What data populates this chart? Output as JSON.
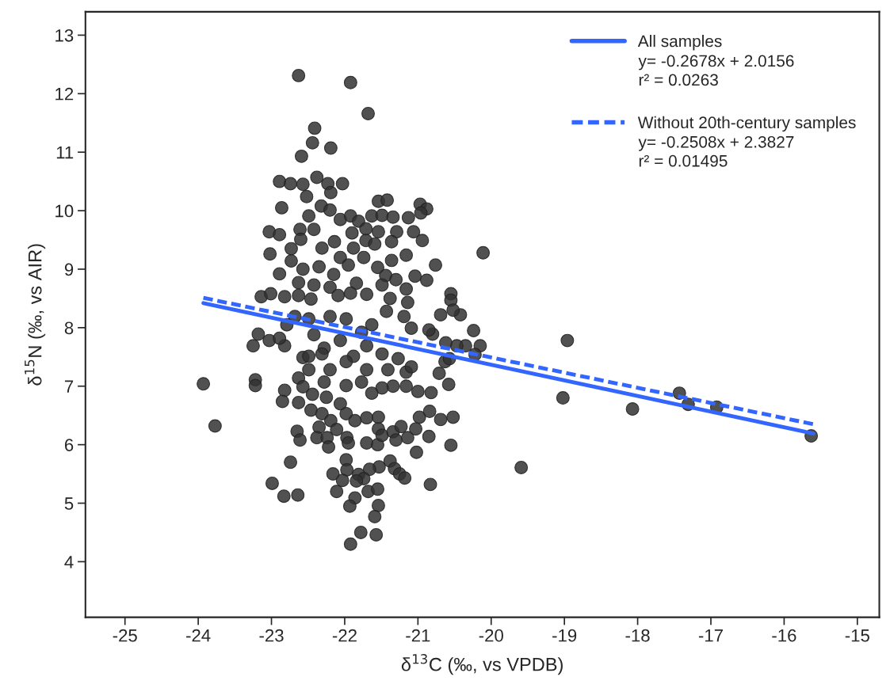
{
  "chart_data": {
    "type": "scatter",
    "xlabel": "δ$^{13}$C (‰, vs VPDB)",
    "ylabel": "δ$^{15}$N (‰, vs AIR)",
    "xlim": [
      -25.54,
      -14.7
    ],
    "ylim": [
      3.05,
      13.4
    ],
    "xticks": [
      -25,
      -24,
      -23,
      -22,
      -21,
      -20,
      -19,
      -18,
      -17,
      -16,
      -15
    ],
    "yticks": [
      4,
      5,
      6,
      7,
      8,
      9,
      10,
      11,
      12,
      13
    ],
    "grid": false,
    "legend": "top right",
    "annotations": [
      "y= -0.2678x + 2.0156\nr² = 0.0263",
      "y= -0.2508x + 2.3827\nr² = 0.01495"
    ],
    "series": [
      {
        "marker": "circle",
        "color": "#333333",
        "x": [
          -22.63,
          -21.92,
          -21.68,
          -22.41,
          -22.44,
          -22.19,
          -22.59,
          -22.89,
          -22.74,
          -22.57,
          -22.38,
          -22.23,
          -22.03,
          -22.19,
          -22.52,
          -22.86,
          -22.32,
          -21.54,
          -21.42,
          -20.97,
          -20.88,
          -20.96,
          -23.03,
          -22.89,
          -23.02,
          -22.89,
          -23.14,
          -20.11,
          -20.76,
          -21.13,
          -21.06,
          -20.94,
          -21.29,
          -21.36,
          -21.16,
          -21.36,
          -21.04,
          -20.88,
          -20.55,
          -20.55,
          -22.49,
          -22.2,
          -22.06,
          -21.92,
          -21.81,
          -21.63,
          -21.49,
          -21.34,
          -22.42,
          -22.61,
          -21.9,
          -21.71,
          -21.54,
          -21.71,
          -21.59,
          -22.6,
          -22.73,
          -22.31,
          -22.14,
          -21.88,
          -22.06,
          -21.74,
          -22.73,
          -22.57,
          -22.35,
          -22.15,
          -21.95,
          -21.55,
          -21.44,
          -22.63,
          -22.63,
          -22.42,
          -22.2,
          -21.84,
          -21.7,
          -21.49,
          -21.3,
          -21.16,
          -21.14,
          -23.01,
          -22.82,
          -22.46,
          -22.09,
          -21.92,
          -21.38,
          -23.93,
          -23.77,
          -23.25,
          -23.18,
          -23.03,
          -22.82,
          -22.89,
          -23.22,
          -23.22,
          -22.82,
          -22.85,
          -22.63,
          -22.65,
          -22.61,
          -22.74,
          -22.99,
          -22.83,
          -22.64,
          -22.57,
          -22.49,
          -22.63,
          -22.57,
          -22.44,
          -22.46,
          -22.25,
          -22.31,
          -22.19,
          -22.06,
          -21.98,
          -21.86,
          -21.7,
          -21.54,
          -22.35,
          -22.38,
          -22.24,
          -22.11,
          -22.22,
          -21.97,
          -21.95,
          -21.7,
          -21.55,
          -21.54,
          -21.49,
          -21.34,
          -21.23,
          -21.3,
          -21.14,
          -21.03,
          -20.98,
          -20.85,
          -20.84,
          -20.69,
          -20.52,
          -20.55,
          -21.02,
          -20.83,
          -21.38,
          -21.32,
          -21.25,
          -21.18,
          -21.53,
          -21.66,
          -21.98,
          -21.97,
          -22.16,
          -22.03,
          -21.81,
          -21.74,
          -21.84,
          -22.11,
          -21.68,
          -21.55,
          -21.86,
          -21.93,
          -21.54,
          -21.59,
          -21.78,
          -21.57,
          -21.92,
          -22.42,
          -22.28,
          -22.06,
          -21.88,
          -21.7,
          -21.49,
          -21.27,
          -21.16,
          -21.09,
          -21.34,
          -21.16,
          -21.0,
          -20.82,
          -21.49,
          -21.63,
          -20.71,
          -20.58,
          -20.63,
          -20.8,
          -20.85,
          -20.69,
          -20.42,
          -20.52,
          -20.24,
          -20.15,
          -20.35,
          -20.47,
          -20.62,
          -20.22,
          -20.57,
          -21.09,
          -21.19,
          -21.43,
          -21.63,
          -21.77,
          -21.98,
          -22.2,
          -22.49,
          -22.68,
          -22.79,
          -22.31,
          -21.98,
          -21.7,
          -21.41,
          -22.2,
          -22.49,
          -21.98,
          -21.77,
          -22.28,
          -19.59,
          -18.96,
          -19.02,
          -18.07,
          -17.43,
          -17.31,
          -16.92,
          -15.63
        ],
        "values": [
          12.31,
          12.19,
          11.66,
          11.41,
          11.16,
          11.07,
          10.93,
          10.5,
          10.46,
          10.45,
          10.57,
          10.46,
          10.46,
          10.31,
          10.24,
          10.05,
          10.08,
          10.16,
          10.18,
          10.11,
          10.03,
          9.96,
          9.64,
          9.59,
          9.26,
          8.92,
          8.53,
          9.28,
          9.07,
          9.88,
          9.64,
          9.49,
          9.64,
          9.47,
          9.24,
          9.15,
          8.88,
          8.81,
          8.58,
          8.47,
          9.91,
          10.01,
          9.85,
          9.91,
          9.82,
          9.91,
          9.92,
          9.89,
          9.68,
          9.68,
          9.62,
          9.69,
          9.64,
          9.49,
          9.43,
          9.51,
          9.35,
          9.36,
          9.47,
          9.36,
          9.2,
          9.2,
          9.14,
          9.0,
          9.04,
          8.91,
          9.07,
          9.03,
          8.89,
          8.77,
          8.55,
          8.73,
          8.69,
          8.76,
          8.57,
          8.73,
          8.82,
          8.66,
          8.43,
          8.58,
          8.53,
          8.49,
          8.55,
          8.59,
          8.5,
          7.04,
          6.32,
          7.69,
          7.89,
          7.78,
          7.69,
          7.82,
          7.11,
          7.01,
          6.93,
          6.74,
          6.72,
          6.23,
          6.08,
          5.7,
          5.34,
          5.12,
          5.14,
          7.49,
          7.51,
          7.14,
          6.99,
          6.86,
          6.59,
          6.81,
          6.53,
          6.41,
          6.7,
          6.53,
          6.41,
          6.46,
          6.47,
          6.3,
          6.12,
          6.12,
          6.26,
          5.96,
          6.12,
          6.03,
          6.03,
          6.0,
          6.27,
          6.16,
          6.22,
          6.31,
          6.08,
          6.12,
          6.27,
          6.47,
          6.14,
          6.57,
          6.43,
          6.47,
          5.99,
          5.87,
          5.32,
          5.72,
          5.59,
          5.5,
          5.43,
          5.62,
          5.58,
          5.74,
          5.57,
          5.5,
          5.39,
          5.49,
          5.42,
          5.38,
          5.2,
          5.2,
          5.24,
          5.09,
          4.95,
          4.96,
          4.77,
          4.5,
          4.46,
          4.3,
          7.88,
          7.65,
          7.78,
          7.51,
          7.69,
          7.55,
          7.47,
          7.24,
          7.33,
          7.0,
          7.0,
          6.91,
          6.89,
          6.97,
          6.88,
          7.22,
          7.03,
          7.42,
          7.89,
          7.96,
          8.22,
          8.22,
          8.3,
          7.95,
          7.69,
          7.69,
          7.69,
          7.74,
          7.54,
          7.47,
          7.99,
          8.19,
          8.28,
          8.05,
          7.92,
          8.15,
          8.19,
          8.15,
          8.19,
          8.05,
          7.55,
          7.42,
          7.28,
          7.28,
          7.28,
          7.28,
          7.01,
          7.07,
          7.07,
          5.61,
          7.78,
          6.8,
          6.61,
          6.88,
          6.69,
          6.64,
          6.15
        ]
      },
      {
        "type": "line",
        "marker": "none",
        "name": "All samples",
        "color": "#3366ff",
        "line_style": "solid",
        "x": [
          -23.93,
          -15.6
        ],
        "values": [
          8.42,
          6.19
        ]
      },
      {
        "type": "line",
        "marker": "none",
        "name": "Without 20th-century samples",
        "color": "#3366ff",
        "line_style": "dashed",
        "x": [
          -23.93,
          -15.6
        ],
        "values": [
          8.51,
          6.35
        ]
      }
    ]
  }
}
